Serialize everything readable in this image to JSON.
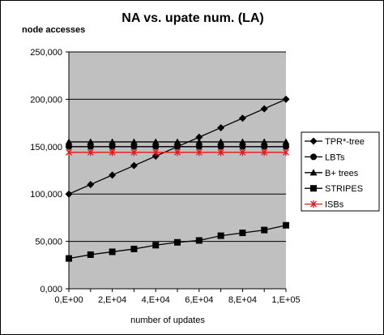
{
  "chart_data": {
    "type": "line",
    "title": "NA vs. upate num. (LA)",
    "ylabel": "node accesses",
    "xlabel": "number of updates",
    "x": [
      0,
      10000,
      20000,
      30000,
      40000,
      50000,
      60000,
      70000,
      80000,
      90000,
      100000
    ],
    "xticks": [
      {
        "value": 0,
        "label": "0,E+00"
      },
      {
        "value": 20000,
        "label": "2,E+04"
      },
      {
        "value": 40000,
        "label": "4,E+04"
      },
      {
        "value": 60000,
        "label": "6,E+04"
      },
      {
        "value": 80000,
        "label": "8,E+04"
      },
      {
        "value": 100000,
        "label": "1,E+05"
      }
    ],
    "yticks": [
      {
        "value": 0,
        "label": "0,000"
      },
      {
        "value": 50000,
        "label": "50,000"
      },
      {
        "value": 100000,
        "label": "100,000"
      },
      {
        "value": 150000,
        "label": "150,000"
      },
      {
        "value": 200000,
        "label": "200,000"
      },
      {
        "value": 250000,
        "label": "250,000"
      }
    ],
    "xlim": [
      0,
      100000
    ],
    "ylim": [
      0,
      250000
    ],
    "grid": "horizontal",
    "legend_position": "right",
    "plot_background": "#c0c0c0",
    "series": [
      {
        "name": "TPR*-tree",
        "marker": "diamond",
        "color": "#000000",
        "values": [
          100000,
          110000,
          120000,
          130000,
          140000,
          150000,
          160000,
          170000,
          180000,
          190000,
          200000
        ]
      },
      {
        "name": "LBTs",
        "marker": "circle",
        "color": "#000000",
        "values": [
          150000,
          150000,
          150000,
          150000,
          150000,
          150000,
          150000,
          150000,
          150000,
          150000,
          150000
        ]
      },
      {
        "name": "B+ trees",
        "marker": "triangle",
        "color": "#000000",
        "values": [
          155000,
          155000,
          155000,
          155000,
          155000,
          155000,
          155000,
          155000,
          155000,
          155000,
          155000
        ]
      },
      {
        "name": "STRIPES",
        "marker": "square",
        "color": "#000000",
        "values": [
          32000,
          36000,
          39000,
          42000,
          46000,
          49000,
          51000,
          56000,
          59000,
          62000,
          67000
        ]
      },
      {
        "name": "ISBs",
        "marker": "asterisk",
        "color": "#e8141c",
        "values": [
          144000,
          144000,
          144000,
          144000,
          144000,
          144000,
          144000,
          144000,
          144000,
          144000,
          144000
        ]
      }
    ]
  }
}
